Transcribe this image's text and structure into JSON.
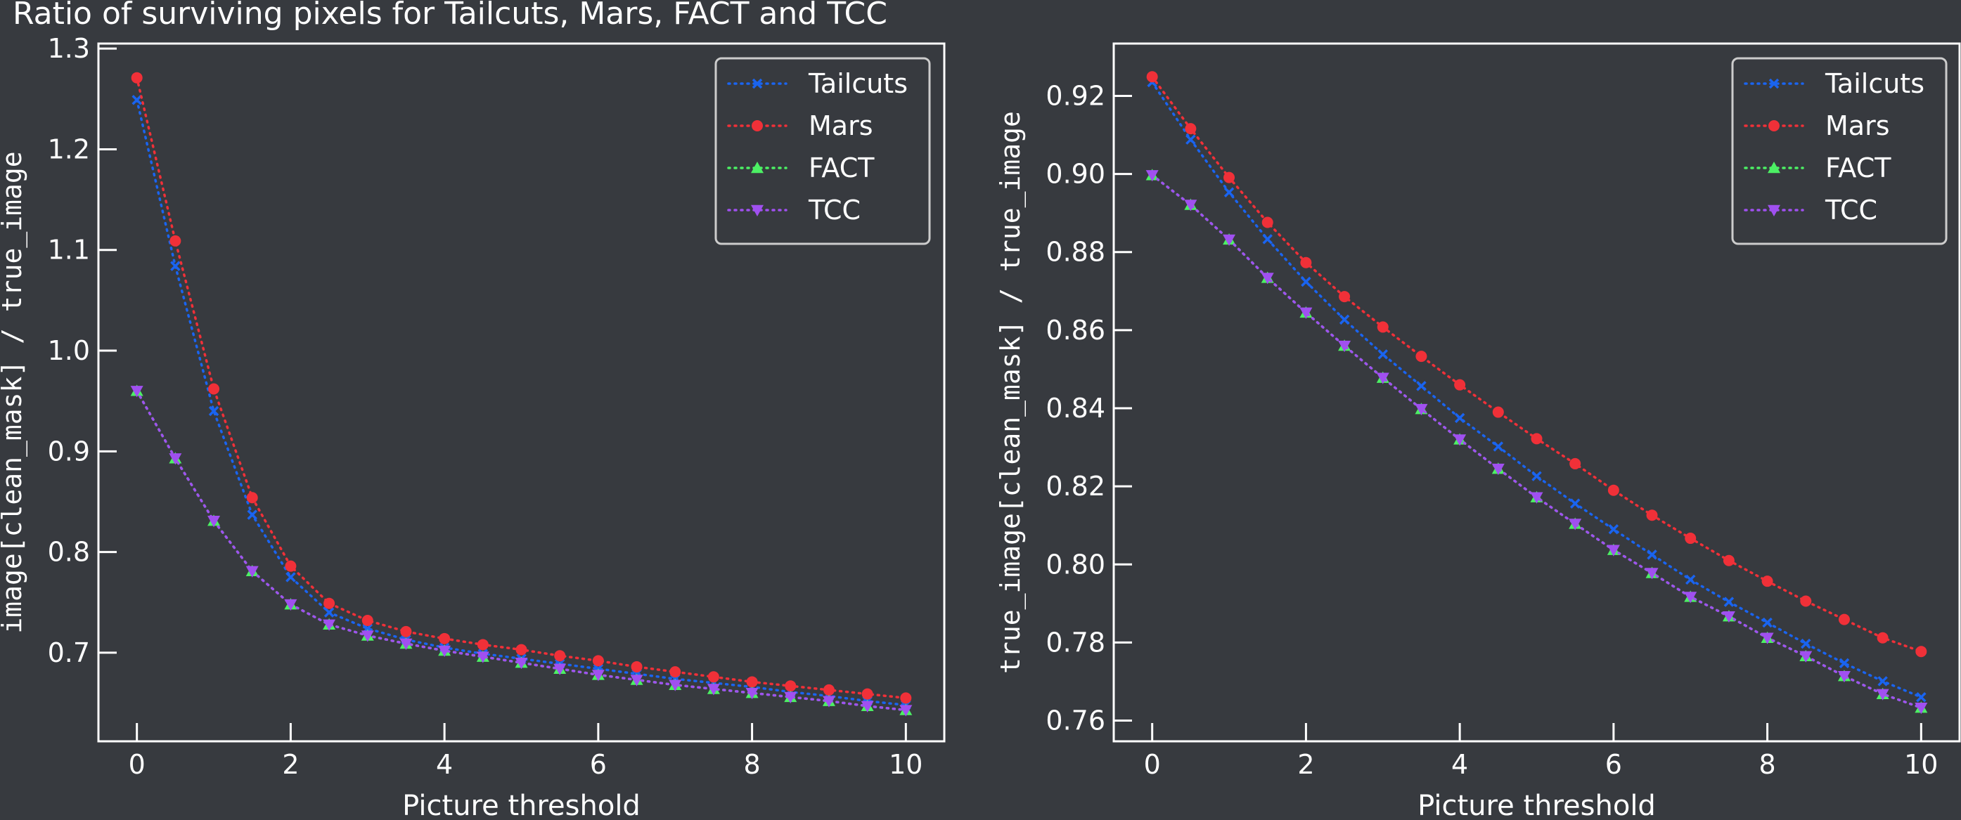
{
  "figure": {
    "title": "Ratio of surviving pixels for Tailcuts, Mars, FACT and TCC"
  },
  "chart_data": [
    {
      "type": "line",
      "xlabel": "Picture threshold",
      "ylabel": "image[clean_mask] / true_image",
      "xlim": [
        -0.5,
        10.5
      ],
      "ylim": [
        0.612,
        1.305
      ],
      "xticks": [
        0,
        2,
        4,
        6,
        8,
        10
      ],
      "yticks": [
        0.7,
        0.8,
        0.9,
        1.0,
        1.1,
        1.2,
        1.3
      ],
      "ytick_labels": [
        "0.7",
        "0.8",
        "0.9",
        "1.0",
        "1.1",
        "1.2",
        "1.3"
      ],
      "legend_position": "top-right",
      "x": [
        0,
        0.5,
        1,
        1.5,
        2,
        2.5,
        3,
        3.5,
        4,
        4.5,
        5,
        5.5,
        6,
        6.5,
        7,
        7.5,
        8,
        8.5,
        9,
        9.5,
        10
      ],
      "series": [
        {
          "name": "Tailcuts",
          "color": "#1a64f0",
          "marker": "x",
          "values": [
            1.249,
            1.084,
            0.94,
            0.837,
            0.775,
            0.74,
            0.724,
            0.713,
            0.705,
            0.699,
            0.694,
            0.689,
            0.684,
            0.679,
            0.674,
            0.67,
            0.666,
            0.661,
            0.657,
            0.652,
            0.648
          ]
        },
        {
          "name": "Mars",
          "color": "#f03038",
          "marker": "circle",
          "values": [
            1.271,
            1.109,
            0.962,
            0.854,
            0.786,
            0.749,
            0.732,
            0.721,
            0.714,
            0.708,
            0.703,
            0.697,
            0.692,
            0.686,
            0.681,
            0.676,
            0.671,
            0.667,
            0.663,
            0.659,
            0.655
          ]
        },
        {
          "name": "FACT",
          "color": "#4cf064",
          "marker": "triangle-up",
          "values": [
            0.96,
            0.893,
            0.831,
            0.781,
            0.748,
            0.728,
            0.717,
            0.709,
            0.702,
            0.696,
            0.69,
            0.684,
            0.678,
            0.673,
            0.668,
            0.664,
            0.66,
            0.656,
            0.652,
            0.647,
            0.643
          ]
        },
        {
          "name": "TCC",
          "color": "#a050f0",
          "marker": "triangle-down",
          "values": [
            0.96,
            0.893,
            0.831,
            0.781,
            0.748,
            0.728,
            0.717,
            0.709,
            0.702,
            0.696,
            0.69,
            0.684,
            0.678,
            0.673,
            0.668,
            0.664,
            0.66,
            0.656,
            0.652,
            0.647,
            0.643
          ]
        }
      ]
    },
    {
      "type": "line",
      "xlabel": "Picture threshold",
      "ylabel": "true_image[clean_mask] / true_image",
      "xlim": [
        -0.5,
        10.5
      ],
      "ylim": [
        0.7547,
        0.9334
      ],
      "xticks": [
        0,
        2,
        4,
        6,
        8,
        10
      ],
      "yticks": [
        0.76,
        0.78,
        0.8,
        0.82,
        0.84,
        0.86,
        0.88,
        0.9,
        0.92
      ],
      "ytick_labels": [
        "0.76",
        "0.78",
        "0.80",
        "0.82",
        "0.84",
        "0.86",
        "0.88",
        "0.90",
        "0.92"
      ],
      "legend_position": "top-right",
      "x": [
        0,
        0.5,
        1,
        1.5,
        2,
        2.5,
        3,
        3.5,
        4,
        4.5,
        5,
        5.5,
        6,
        6.5,
        7,
        7.5,
        8,
        8.5,
        9,
        9.5,
        10
      ],
      "series": [
        {
          "name": "Tailcuts",
          "color": "#1a64f0",
          "marker": "x",
          "values": [
            0.9235,
            0.9088,
            0.8953,
            0.8833,
            0.8724,
            0.8627,
            0.8538,
            0.8457,
            0.8375,
            0.8302,
            0.8226,
            0.8156,
            0.809,
            0.8025,
            0.7961,
            0.7904,
            0.7851,
            0.7797,
            0.7747,
            0.7701,
            0.766
          ]
        },
        {
          "name": "Mars",
          "color": "#f03038",
          "marker": "circle",
          "values": [
            0.9249,
            0.9116,
            0.8991,
            0.8876,
            0.8773,
            0.8686,
            0.8608,
            0.8533,
            0.846,
            0.839,
            0.8322,
            0.8258,
            0.819,
            0.8126,
            0.8067,
            0.801,
            0.7957,
            0.7906,
            0.7859,
            0.7812,
            0.7777
          ]
        },
        {
          "name": "FACT",
          "color": "#4cf064",
          "marker": "triangle-up",
          "values": [
            0.8997,
            0.8921,
            0.8832,
            0.8734,
            0.8645,
            0.856,
            0.8478,
            0.8398,
            0.832,
            0.8245,
            0.8172,
            0.8104,
            0.8037,
            0.7978,
            0.7917,
            0.7867,
            0.7812,
            0.7765,
            0.7714,
            0.7668,
            0.7633
          ]
        },
        {
          "name": "TCC",
          "color": "#a050f0",
          "marker": "triangle-down",
          "values": [
            0.8997,
            0.8921,
            0.8832,
            0.8734,
            0.8645,
            0.856,
            0.8478,
            0.8398,
            0.832,
            0.8245,
            0.8172,
            0.8104,
            0.8037,
            0.7978,
            0.7917,
            0.7867,
            0.7812,
            0.7765,
            0.7714,
            0.7668,
            0.7633
          ]
        }
      ]
    }
  ]
}
